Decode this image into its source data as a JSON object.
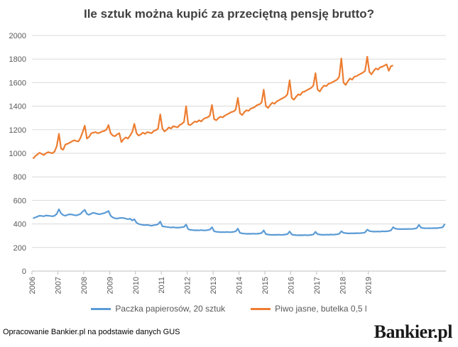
{
  "title": "Ile sztuk można kupić za przeciętną pensję brutto?",
  "footer": {
    "source": "Opracowanie Bankier.pl na podstawie danych GUS",
    "logo": "Bankier.pl"
  },
  "colors": {
    "series1": "#5b9bd5",
    "series2": "#ed7d31",
    "grid": "#d9d9d9",
    "axis": "#bfbfbf"
  },
  "chart_data": {
    "type": "line",
    "title": "Ile sztuk można kupić za przeciętną pensję brutto?",
    "ylim": [
      0,
      2000
    ],
    "yticks": [
      0,
      200,
      400,
      600,
      800,
      1000,
      1200,
      1400,
      1600,
      1800,
      2000
    ],
    "xticks": [
      "2006",
      "2007",
      "2008",
      "2009",
      "2010",
      "2011",
      "2012",
      "2013",
      "2014",
      "2015",
      "2016",
      "2017",
      "2018",
      "2019"
    ],
    "x_start": "2006-01",
    "x_end": "2019-10",
    "grid": true,
    "legend_position": "bottom",
    "series": [
      {
        "name": "Paczka papierosów, 20 sztuk",
        "color": "#5b9bd5",
        "values": [
          448,
          455,
          462,
          470,
          468,
          465,
          472,
          470,
          468,
          465,
          470,
          485,
          525,
          490,
          475,
          470,
          478,
          482,
          480,
          475,
          472,
          478,
          485,
          505,
          520,
          485,
          478,
          488,
          495,
          490,
          485,
          482,
          488,
          492,
          500,
          510,
          470,
          455,
          448,
          445,
          450,
          452,
          450,
          446,
          440,
          445,
          430,
          440,
          410,
          400,
          395,
          392,
          390,
          392,
          388,
          385,
          390,
          392,
          398,
          420,
          380,
          378,
          375,
          372,
          370,
          372,
          370,
          368,
          370,
          372,
          375,
          395,
          355,
          350,
          348,
          346,
          347,
          345,
          348,
          345,
          346,
          348,
          352,
          372,
          338,
          334,
          332,
          330,
          331,
          330,
          332,
          330,
          331,
          333,
          337,
          360,
          324,
          320,
          318,
          316,
          317,
          316,
          318,
          316,
          317,
          319,
          323,
          345,
          313,
          310,
          308,
          307,
          308,
          307,
          309,
          307,
          308,
          310,
          314,
          336,
          310,
          307,
          305,
          304,
          305,
          304,
          306,
          304,
          305,
          307,
          311,
          333,
          313,
          310,
          308,
          308,
          309,
          308,
          310,
          309,
          310,
          312,
          316,
          338,
          325,
          322,
          320,
          320,
          321,
          320,
          322,
          321,
          322,
          324,
          328,
          352,
          340,
          337,
          335,
          335,
          336,
          335,
          338,
          336,
          338,
          340,
          345,
          372,
          360,
          358,
          356,
          356,
          357,
          356,
          358,
          357,
          358,
          360,
          365,
          392,
          368,
          365,
          363,
          363,
          364,
          363,
          365,
          364,
          366,
          368,
          372,
          400
        ]
      },
      {
        "name": "Piwo jasne, butelka 0,5 l",
        "color": "#ed7d31",
        "values": [
          955,
          975,
          990,
          1005,
          995,
          985,
          1000,
          1010,
          1005,
          1000,
          1015,
          1060,
          1165,
          1040,
          1030,
          1075,
          1080,
          1090,
          1100,
          1110,
          1105,
          1100,
          1130,
          1180,
          1235,
          1125,
          1140,
          1170,
          1175,
          1180,
          1170,
          1175,
          1185,
          1190,
          1200,
          1240,
          1170,
          1150,
          1145,
          1160,
          1170,
          1095,
          1120,
          1135,
          1125,
          1150,
          1180,
          1250,
          1170,
          1150,
          1160,
          1175,
          1165,
          1180,
          1175,
          1170,
          1190,
          1195,
          1210,
          1330,
          1210,
          1185,
          1200,
          1220,
          1210,
          1230,
          1225,
          1220,
          1240,
          1250,
          1265,
          1400,
          1245,
          1240,
          1255,
          1270,
          1265,
          1280,
          1270,
          1290,
          1300,
          1305,
          1320,
          1410,
          1290,
          1280,
          1300,
          1310,
          1305,
          1320,
          1330,
          1340,
          1350,
          1355,
          1370,
          1470,
          1340,
          1325,
          1350,
          1365,
          1360,
          1380,
          1385,
          1395,
          1410,
          1415,
          1430,
          1540,
          1400,
          1385,
          1410,
          1430,
          1420,
          1440,
          1450,
          1460,
          1470,
          1480,
          1500,
          1620,
          1470,
          1455,
          1480,
          1500,
          1495,
          1520,
          1525,
          1535,
          1545,
          1555,
          1575,
          1680,
          1540,
          1525,
          1555,
          1575,
          1570,
          1590,
          1595,
          1605,
          1615,
          1625,
          1650,
          1805,
          1600,
          1580,
          1610,
          1635,
          1625,
          1650,
          1655,
          1665,
          1675,
          1685,
          1700,
          1820,
          1690,
          1670,
          1700,
          1720,
          1710,
          1730,
          1735,
          1745,
          1755,
          1700,
          1740,
          1745
        ]
      }
    ]
  }
}
